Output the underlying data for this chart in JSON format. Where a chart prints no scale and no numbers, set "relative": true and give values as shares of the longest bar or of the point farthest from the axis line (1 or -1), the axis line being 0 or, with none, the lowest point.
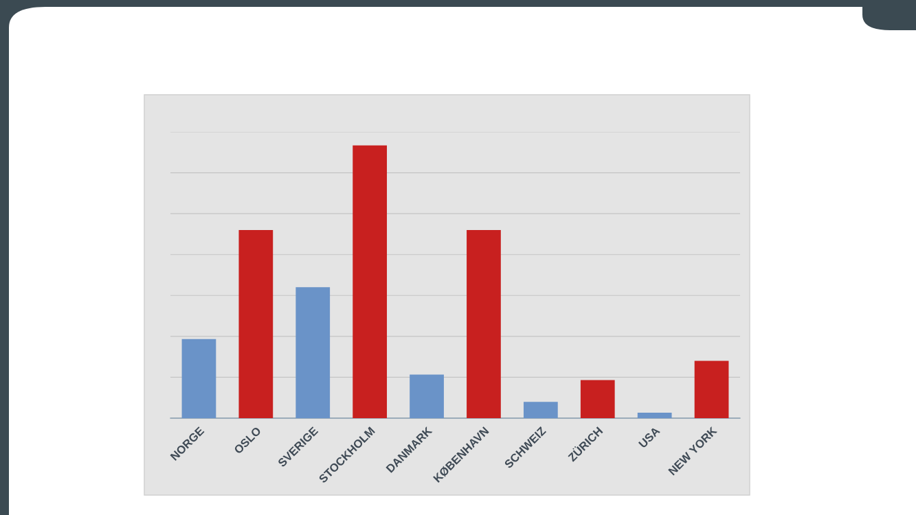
{
  "chart_data": {
    "type": "bar",
    "relative": true,
    "grid": "y",
    "categories": [
      "NORGE",
      "OSLO",
      "SVERIGE",
      "STOCKHOLM",
      "DANMARK",
      "KØBENHAVN",
      "SCHWEIZ",
      "ZÜRICH",
      "USA",
      "NEW YORK"
    ],
    "values": [
      0.29,
      0.69,
      0.48,
      1,
      0.16,
      0.69,
      0.06,
      0.14,
      0.02,
      0.21
    ],
    "colors": [
      "#6a93c8",
      "#c8201f",
      "#6a93c8",
      "#c8201f",
      "#6a93c8",
      "#c8201f",
      "#6a93c8",
      "#c8201f",
      "#6a93c8",
      "#c8201f"
    ]
  }
}
